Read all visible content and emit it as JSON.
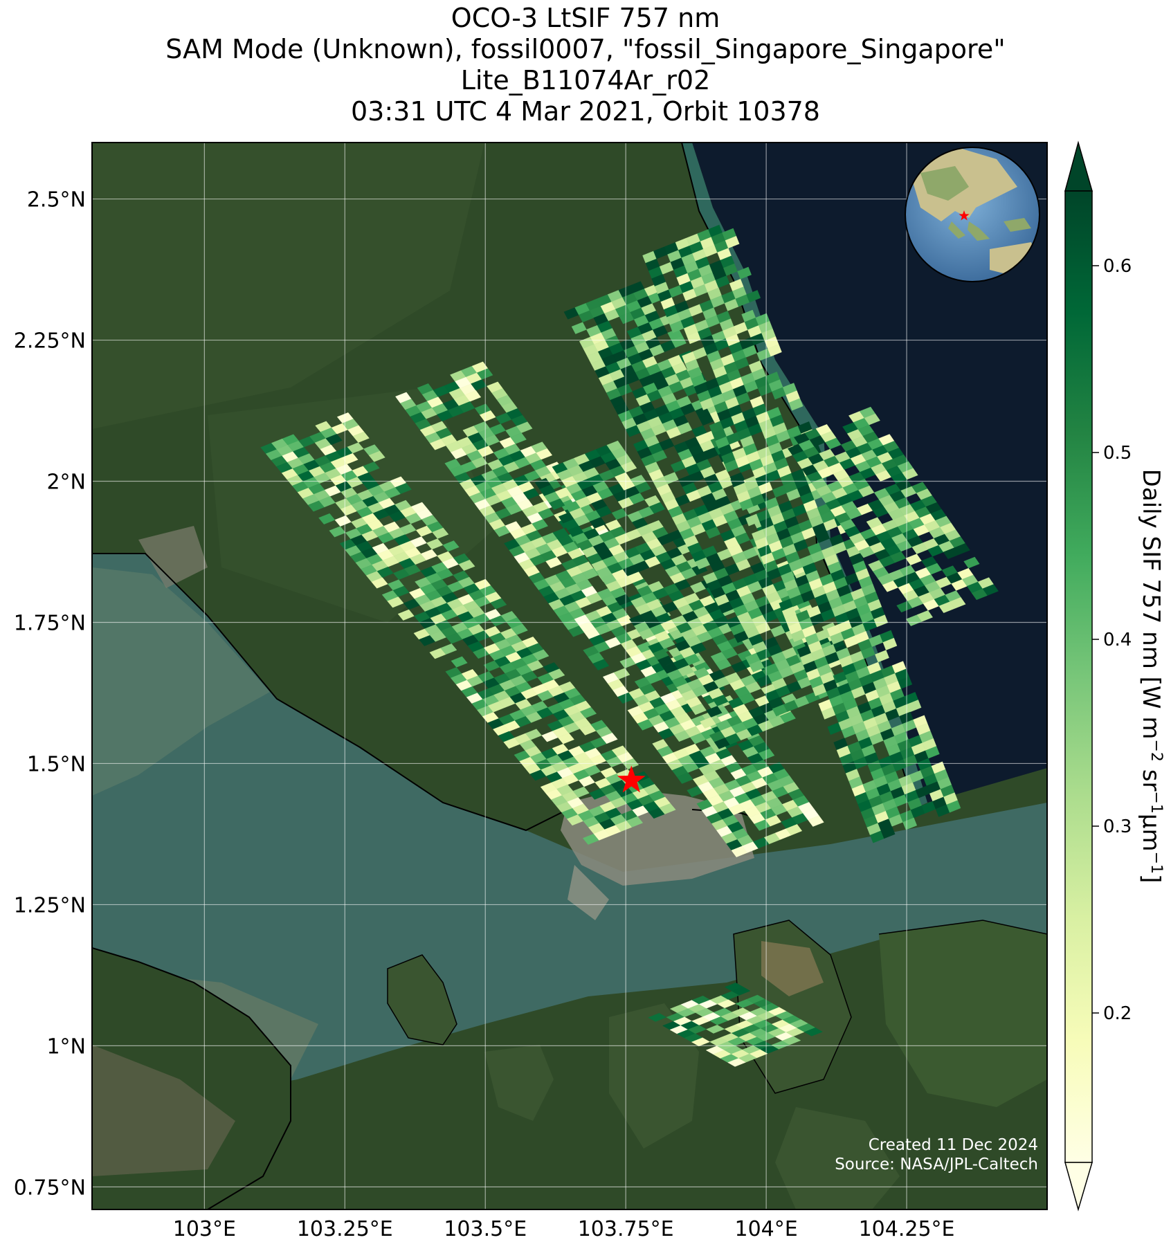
{
  "title_lines": [
    "OCO-3 LtSIF 757 nm",
    "SAM Mode (Unknown), fossil0007, \"fossil_Singapore_Singapore\"",
    "Lite_B11074Ar_r02",
    "03:31 UTC 4 Mar 2021, Orbit 10378"
  ],
  "map": {
    "lon_range": [
      102.8,
      104.5
    ],
    "lat_range": [
      0.71,
      2.6
    ],
    "lon_ticks": [
      {
        "value": 103.0,
        "label": "103°E"
      },
      {
        "value": 103.25,
        "label": "103.25°E"
      },
      {
        "value": 103.5,
        "label": "103.5°E"
      },
      {
        "value": 103.75,
        "label": "103.75°E"
      },
      {
        "value": 104.0,
        "label": "104°E"
      },
      {
        "value": 104.25,
        "label": "104.25°E"
      }
    ],
    "lat_ticks": [
      {
        "value": 2.5,
        "label": "2.5°N"
      },
      {
        "value": 2.25,
        "label": "2.25°N"
      },
      {
        "value": 2.0,
        "label": "2°N"
      },
      {
        "value": 1.75,
        "label": "1.75°N"
      },
      {
        "value": 1.5,
        "label": "1.5°N"
      },
      {
        "value": 1.25,
        "label": "1.25°N"
      },
      {
        "value": 1.0,
        "label": "1°N"
      },
      {
        "value": 0.75,
        "label": "0.75°N"
      }
    ],
    "grid": true,
    "target_marker": {
      "lon": 103.76,
      "lat": 1.47,
      "color": "#ff0000",
      "shape": "star"
    },
    "inset_globe": {
      "placement": "top-right",
      "marker_color": "#ff0000"
    },
    "credits": [
      "Created 11 Dec 2024",
      "Source: NASA/JPL-Caltech"
    ],
    "colors": {
      "land": "#2f4a28",
      "ocean_open": "#0d1b2d",
      "strait": "#3f6a63",
      "urban": "#8a8a7c"
    }
  },
  "colorbar": {
    "label_main": "Daily SIF 757 nm [W m",
    "label_sup1": "−2",
    "label_mid1": " sr",
    "label_sup2": "−1",
    "label_mid2": "μm",
    "label_sup3": "−1",
    "label_end": "]",
    "range": [
      0.12,
      0.64
    ],
    "ticks": [
      {
        "value": 0.2,
        "label": "0.2"
      },
      {
        "value": 0.3,
        "label": "0.3"
      },
      {
        "value": 0.4,
        "label": "0.4"
      },
      {
        "value": 0.5,
        "label": "0.5"
      },
      {
        "value": 0.6,
        "label": "0.6"
      }
    ],
    "extend": "both",
    "colormap": [
      "#ffffe5",
      "#f7fcb9",
      "#d9f0a3",
      "#addd8e",
      "#78c679",
      "#41ab5d",
      "#238443",
      "#006837",
      "#004529"
    ]
  },
  "chart_data": {
    "type": "heatmap",
    "variable": "Daily SIF 757 nm",
    "swaths": [
      {
        "start": {
          "lon": 103.1,
          "lat": 2.06
        },
        "end": {
          "lon": 103.68,
          "lat": 1.36
        },
        "vmean": 0.38
      },
      {
        "start": {
          "lon": 103.34,
          "lat": 2.15
        },
        "end": {
          "lon": 103.95,
          "lat": 1.33
        },
        "vmean": 0.36
      },
      {
        "start": {
          "lon": 103.58,
          "lat": 2.01
        },
        "end": {
          "lon": 103.92,
          "lat": 1.52
        },
        "vmean": 0.45
      },
      {
        "start": {
          "lon": 103.64,
          "lat": 2.3
        },
        "end": {
          "lon": 104.02,
          "lat": 1.58
        },
        "vmean": 0.46
      },
      {
        "start": {
          "lon": 103.78,
          "lat": 2.4
        },
        "end": {
          "lon": 104.19,
          "lat": 1.36
        },
        "vmean": 0.44
      },
      {
        "start": {
          "lon": 104.03,
          "lat": 2.07
        },
        "end": {
          "lon": 104.26,
          "lat": 1.74
        },
        "vmean": 0.42
      },
      {
        "start": {
          "lon": 103.79,
          "lat": 1.05
        },
        "end": {
          "lon": 103.95,
          "lat": 0.96
        },
        "vmean": 0.35
      }
    ]
  }
}
